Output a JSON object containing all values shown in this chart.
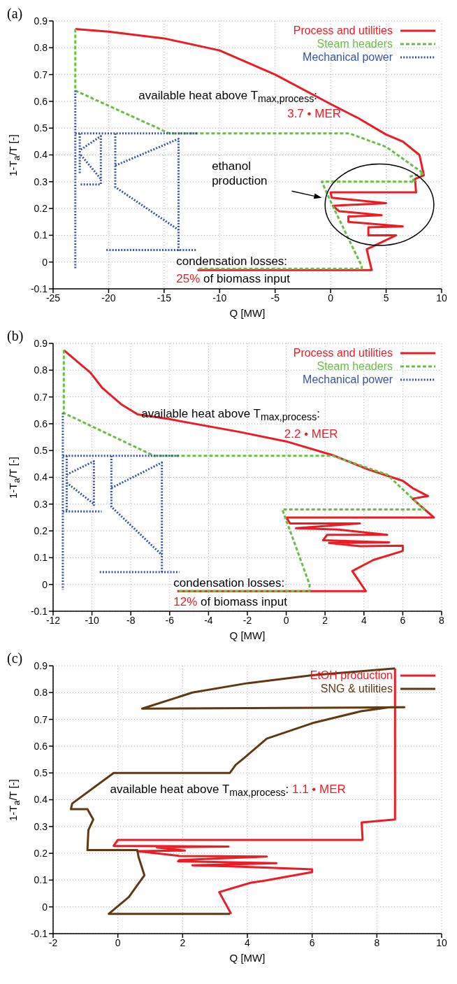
{
  "chart_data": [
    {
      "type": "line",
      "title": "(a)",
      "xlabel": "Q [MW]",
      "ylabel": "1-T$_{a}$/T [-]",
      "xlim": [
        -25,
        10
      ],
      "xticks": [
        -25,
        -20,
        -15,
        -10,
        -5,
        0,
        5,
        10
      ],
      "ylim": [
        -0.1,
        0.9
      ],
      "yticks": [
        -0.1,
        0,
        0.1,
        0.2,
        0.3,
        0.4,
        0.5,
        0.6,
        0.7,
        0.8,
        0.9
      ],
      "grid": true,
      "legend": "top right",
      "annotations": [
        "available heat above T$_{max,process}$:",
        "3.7 • MER",
        "ethanol production",
        "condensation losses:",
        "25%",
        "of biomass input"
      ],
      "series": [
        {
          "name": "Process and utilities",
          "color": "#ed1c24",
          "line_style": "solid",
          "x": [
            -23,
            -20,
            -15,
            -10,
            -5,
            0,
            2.5,
            5,
            6.5,
            8,
            8.4,
            7.6,
            7.7,
            0,
            0.1,
            5.0,
            0.2,
            0.75,
            4.6,
            1.6,
            1.6,
            6.5,
            3.4,
            3.4,
            5.9,
            4.2,
            3.25,
            3.7,
            -12
          ],
          "values": [
            0.87,
            0.86,
            0.835,
            0.79,
            0.7,
            0.59,
            0.537,
            0.476,
            0.45,
            0.4,
            0.324,
            0.31,
            0.26,
            0.26,
            0.24,
            0.22,
            0.21,
            0.19,
            0.175,
            0.17,
            0.15,
            0.133,
            0.13,
            0.1,
            0.1,
            0.066,
            0.048,
            -0.03,
            -0.03
          ]
        },
        {
          "name": "Steam headers",
          "color": "#6abd45",
          "line_style": "dashed",
          "x": [
            -23,
            -23,
            -14.5,
            1.7,
            5,
            8.4,
            7.2,
            7.6,
            -0.8,
            0.3,
            2.8,
            2.8,
            -12
          ],
          "values": [
            0.87,
            0.64,
            0.48,
            0.48,
            0.43,
            0.33,
            0.32,
            0.3,
            0.3,
            0.2,
            -0.015,
            -0.025,
            -0.025
          ]
        },
        {
          "name": "Mechanical power",
          "color": "#3953a4",
          "line_style": "dotted",
          "x": [
            -23,
            -23,
            null,
            -23,
            -12,
            null,
            -22.6,
            -22.6,
            null,
            -22.5,
            -20.7,
            -20.7,
            -22.6,
            null,
            -22.5,
            -20.7,
            null,
            -19.4,
            -19.4,
            -13.7,
            -13.7,
            null,
            -19.4,
            -19.4,
            -13.7,
            null,
            -20.2,
            -12
          ],
          "values": [
            0.64,
            -0.023,
            null,
            0.48,
            0.48,
            null,
            0.48,
            0.33,
            null,
            0.42,
            0.47,
            0.29,
            0.29,
            null,
            0.4,
            0.31,
            null,
            0.48,
            0.36,
            0.46,
            0.04,
            null,
            0.36,
            0.28,
            0.12,
            null,
            0.045,
            0.045
          ]
        }
      ]
    },
    {
      "type": "line",
      "title": "(b)",
      "xlabel": "Q [MW]",
      "ylabel": "1-T$_{a}$/T [-]",
      "xlim": [
        -12,
        8
      ],
      "xticks": [
        -12,
        -10,
        -8,
        -6,
        -4,
        -2,
        0,
        2,
        4,
        6,
        8
      ],
      "ylim": [
        -0.1,
        0.9
      ],
      "yticks": [
        -0.1,
        0,
        0.1,
        0.2,
        0.3,
        0.4,
        0.5,
        0.6,
        0.7,
        0.8,
        0.9
      ],
      "grid": true,
      "legend": "top right",
      "annotations": [
        "available heat above T$_{max,process}$:",
        "2.2 • MER",
        "condensation losses:",
        "12%",
        "of biomass input"
      ],
      "series": [
        {
          "name": "Process and utilities",
          "color": "#ed1c24",
          "line_style": "solid",
          "x": [
            -11.45,
            -10.07,
            -9.46,
            -8.5,
            -7.65,
            -6.07,
            -2.45,
            0,
            2.38,
            4.2,
            6.0,
            6.5,
            7.3,
            6.5,
            7.6,
            0,
            0.2,
            3.8,
            0.5,
            2.7,
            5.2,
            2.1,
            1.9,
            5.3,
            2.2,
            3.8,
            6.0,
            6.0,
            4.5,
            3.4,
            4.1,
            -5.6
          ],
          "values": [
            0.875,
            0.79,
            0.733,
            0.673,
            0.635,
            0.618,
            0.57,
            0.534,
            0.483,
            0.43,
            0.387,
            0.36,
            0.33,
            0.32,
            0.25,
            0.25,
            0.228,
            0.228,
            0.21,
            0.205,
            0.185,
            0.185,
            0.165,
            0.157,
            0.155,
            0.143,
            0.145,
            0.125,
            0.092,
            0.05,
            -0.025,
            -0.025
          ]
        },
        {
          "name": "Steam headers",
          "color": "#6abd45",
          "line_style": "dashed",
          "x": [
            -11.45,
            -11.45,
            -6.8,
            2.4,
            5.2,
            7.1,
            -0.2,
            1.2,
            1.2,
            -5.6
          ],
          "values": [
            0.875,
            0.64,
            0.48,
            0.48,
            0.41,
            0.28,
            0.28,
            0.0,
            -0.025,
            -0.025
          ]
        },
        {
          "name": "Mechanical power",
          "color": "#3953a4",
          "line_style": "dotted",
          "x": [
            -11.5,
            -11.5,
            null,
            -11.5,
            -5.5,
            null,
            -11.3,
            -11.3,
            null,
            -11.3,
            -9.9,
            -9.9,
            null,
            -11.3,
            -9.9,
            null,
            -11.5,
            -9.5,
            null,
            -9.0,
            -9.0,
            -6.4,
            -6.4,
            null,
            -9.0,
            -9.0,
            -6.4,
            null,
            -9.6,
            -5.5
          ],
          "values": [
            0.64,
            -0.02,
            null,
            0.48,
            0.48,
            null,
            0.48,
            0.27,
            null,
            0.41,
            0.46,
            0.29,
            null,
            0.38,
            0.3,
            null,
            0.273,
            0.273,
            null,
            0.48,
            0.36,
            0.455,
            0.046,
            null,
            0.36,
            0.29,
            0.11,
            null,
            0.046,
            0.046
          ]
        }
      ]
    },
    {
      "type": "line",
      "title": "(c)",
      "xlabel": "Q [MW]",
      "ylabel": "1-T$_{a}$/T [-]",
      "xlim": [
        -2,
        10
      ],
      "xticks": [
        -2,
        0,
        2,
        4,
        6,
        8,
        10
      ],
      "ylim": [
        -0.1,
        0.9
      ],
      "yticks": [
        -0.1,
        0,
        0.1,
        0.2,
        0.3,
        0.4,
        0.5,
        0.6,
        0.7,
        0.8,
        0.9
      ],
      "grid": true,
      "legend": "top right",
      "annotations": [
        "available heat above T$_{max,process}$:",
        "1.1 • MER"
      ],
      "series": [
        {
          "name": "EtOH production",
          "color": "#ed1c24",
          "line_style": "solid",
          "x": [
            8.56,
            8.56,
            7.53,
            7.56,
            0,
            -0.13,
            3.42,
            1.2,
            2.07,
            0.6,
            1.9,
            4.6,
            1.9,
            1.86,
            4.9,
            2.3,
            3.8,
            6.0,
            6.0,
            4.5,
            4.1,
            3.13,
            3.5
          ],
          "values": [
            0.89,
            0.326,
            0.315,
            0.25,
            0.25,
            0.228,
            0.225,
            0.222,
            0.21,
            0.208,
            0.19,
            0.188,
            0.175,
            0.17,
            0.163,
            0.155,
            0.15,
            0.14,
            0.13,
            0.097,
            0.09,
            0.055,
            -0.026
          ]
        },
        {
          "name": "SNG & utilities",
          "color": "#603913",
          "line_style": "solid",
          "x": [
            3.46,
            -0.28,
            0.34,
            0.82,
            0.64,
            0.6,
            -0.94,
            -0.91,
            -0.76,
            -0.94,
            -1.45,
            -1.41,
            -0.13,
            3.46,
            3.64,
            3.86,
            4.6,
            6.07,
            7.5,
            8.4,
            8.85,
            0.75,
            2.3,
            4.0,
            6.0,
            8.56
          ],
          "values": [
            -0.026,
            -0.026,
            0.037,
            0.118,
            0.186,
            0.212,
            0.212,
            0.287,
            0.326,
            0.365,
            0.365,
            0.386,
            0.5,
            0.5,
            0.53,
            0.552,
            0.628,
            0.688,
            0.73,
            0.745,
            0.745,
            0.74,
            0.8,
            0.835,
            0.865,
            0.89
          ]
        }
      ]
    }
  ]
}
